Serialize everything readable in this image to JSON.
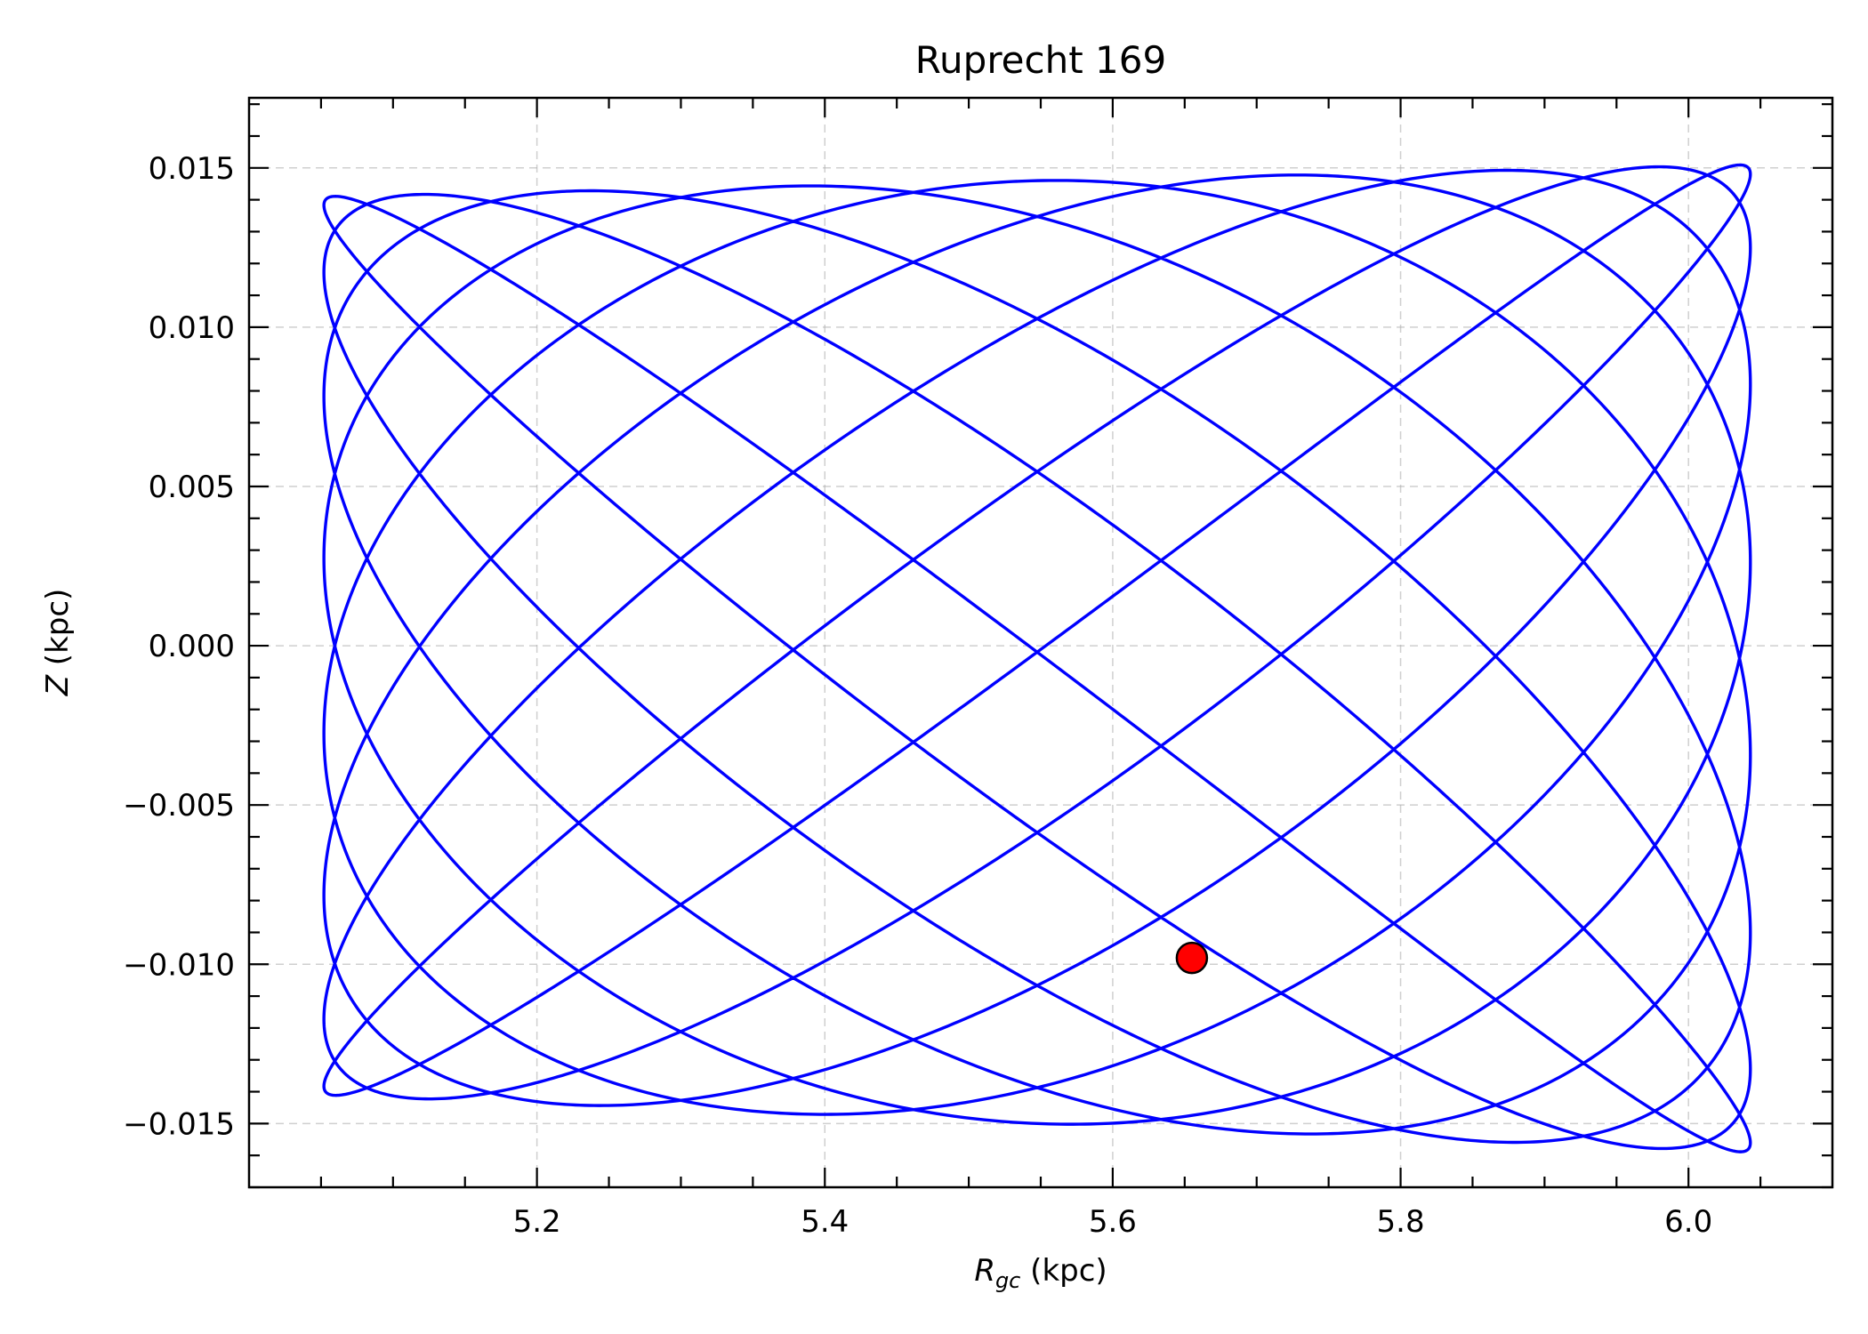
{
  "chart_data": {
    "type": "line",
    "title": "Ruprecht 169",
    "xlabel_main": "R",
    "xlabel_sub": "gc",
    "xlabel_unit": " (kpc)",
    "ylabel_main": "Z",
    "ylabel_unit": " (kpc)",
    "xlim": [
      5.0,
      6.1
    ],
    "ylim": [
      -0.017,
      0.0172
    ],
    "xticks": [
      5.2,
      5.4,
      5.6,
      5.8,
      6.0
    ],
    "xtick_labels": [
      "5.2",
      "5.4",
      "5.6",
      "5.8",
      "6.0"
    ],
    "yticks": [
      0.015,
      0.01,
      0.005,
      0.0,
      -0.005,
      -0.01,
      -0.015
    ],
    "ytick_labels": [
      "0.015",
      "0.010",
      "0.005",
      "0.000",
      "−0.005",
      "−0.010",
      "−0.015"
    ],
    "grid": true,
    "series": [
      {
        "style": "orbit-line",
        "color": "#0000ff",
        "orbit": {
          "r_min": 5.052,
          "r_max": 6.043,
          "z_amplitude_inner": 0.0141,
          "z_amplitude_outer": 0.0155,
          "z_min": -0.0153,
          "turning_points_upper_left": [
            [
              5.06,
              0.014
            ],
            [
              5.08,
              0.0141
            ],
            [
              5.1,
              0.0141
            ],
            [
              5.135,
              0.0142
            ]
          ],
          "turning_points_upper_right": [
            [
              5.945,
              0.0155
            ],
            [
              5.975,
              0.0156
            ],
            [
              6.0,
              0.0156
            ],
            [
              6.02,
              0.0156
            ],
            [
              6.035,
              0.0156
            ]
          ],
          "turning_points_lower": [
            [
              5.26,
              -0.0143
            ],
            [
              5.31,
              -0.0145
            ],
            [
              5.39,
              -0.0147
            ],
            [
              5.47,
              -0.0148
            ],
            [
              5.55,
              -0.0149
            ],
            [
              5.63,
              -0.015
            ],
            [
              5.7,
              -0.0151
            ],
            [
              5.76,
              -0.0152
            ],
            [
              5.84,
              -0.0154
            ]
          ]
        }
      },
      {
        "style": "current-position-marker",
        "color": "#ff0000",
        "edge_color": "#000000",
        "x": [
          5.655
        ],
        "y": [
          -0.0098
        ]
      }
    ]
  }
}
